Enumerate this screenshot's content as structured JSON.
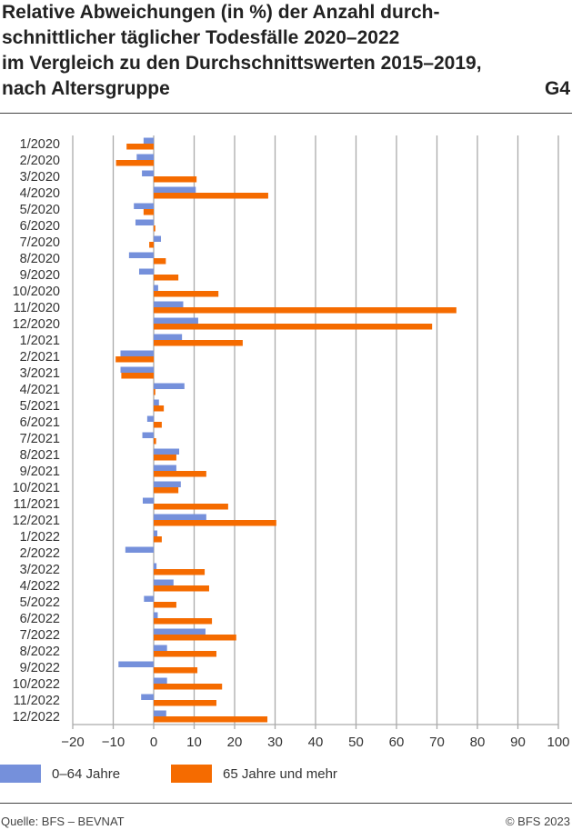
{
  "chart_data": {
    "type": "bar",
    "orientation": "horizontal",
    "title": "Relative Abweichungen (in %) der Anzahl durchschnittlicher täglicher Todesfälle 2020–2022 im Vergleich zu den Durchschnittswerten 2015–2019, nach Altersgruppe",
    "title_lines": [
      "Relative Abweichungen (in %) der Anzahl durch-",
      "schnittlicher täglicher Todesfälle 2020–2022",
      "im Vergleich zu den Durchschnittswerten 2015–2019,",
      "nach Altersgruppe"
    ],
    "figure_number": "G4",
    "categories": [
      "1/2020",
      "2/2020",
      "3/2020",
      "4/2020",
      "5/2020",
      "6/2020",
      "7/2020",
      "8/2020",
      "9/2020",
      "10/2020",
      "11/2020",
      "12/2020",
      "1/2021",
      "2/2021",
      "3/2021",
      "4/2021",
      "5/2021",
      "6/2021",
      "7/2021",
      "8/2021",
      "9/2021",
      "10/2021",
      "11/2021",
      "12/2021",
      "1/2022",
      "2/2022",
      "3/2022",
      "4/2022",
      "5/2022",
      "6/2022",
      "7/2022",
      "8/2022",
      "9/2022",
      "10/2022",
      "11/2022",
      "12/2022"
    ],
    "series": [
      {
        "name": "0–64 Jahre",
        "color": "#7590db",
        "values": [
          -2.5,
          -4.2,
          -2.9,
          10.4,
          -4.9,
          -4.5,
          1.8,
          -6.1,
          -3.6,
          1.1,
          7.3,
          11.0,
          7.0,
          -8.2,
          -8.2,
          7.6,
          1.3,
          -1.6,
          -2.8,
          6.3,
          5.6,
          6.7,
          -2.7,
          13.0,
          0.9,
          -7.0,
          0.7,
          4.9,
          -2.4,
          1.0,
          12.8,
          3.3,
          -8.7,
          3.3,
          -3.1,
          3.1
        ]
      },
      {
        "name": "65 Jahre und mehr",
        "color": "#f56b00",
        "values": [
          -6.7,
          -9.3,
          10.6,
          28.3,
          -2.5,
          0.4,
          -1.1,
          3.0,
          6.1,
          16.0,
          74.8,
          68.8,
          22.0,
          -9.4,
          -8.0,
          0.4,
          2.5,
          2.0,
          0.6,
          5.6,
          13.0,
          6.1,
          18.4,
          30.3,
          2.0,
          0,
          12.6,
          13.7,
          5.6,
          14.4,
          20.4,
          15.5,
          10.8,
          16.9,
          15.5,
          28.1
        ]
      }
    ],
    "xlim": [
      -20,
      100
    ],
    "xticks": [
      "−20",
      "−10",
      "0",
      "10",
      "20",
      "30",
      "40",
      "50",
      "60",
      "70",
      "80",
      "90",
      "100"
    ],
    "grid": true,
    "legend_position": "bottom-left"
  },
  "footer": {
    "source": "Quelle: BFS – BEVNAT",
    "copyright": "© BFS 2023"
  }
}
